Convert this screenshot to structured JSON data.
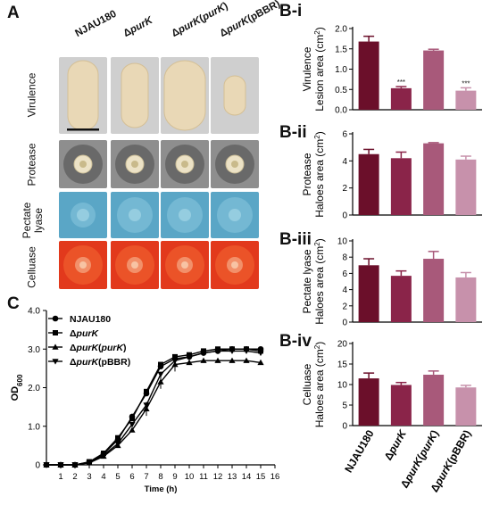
{
  "panel_a": {
    "label": "A",
    "strains": [
      "NJAU180",
      "ΔpurK",
      "ΔpurK(purK)",
      "ΔpurK(pBBR)"
    ],
    "strain_parts": [
      {
        "pre": "NJAU180",
        "it": "",
        "post": ""
      },
      {
        "pre": "Δ",
        "it": "purK",
        "post": ""
      },
      {
        "pre": "Δ",
        "it": "purK",
        "post": "(",
        "it2": "purK",
        "post2": ")"
      },
      {
        "pre": "Δ",
        "it": "purK",
        "post": "(pBBR)"
      }
    ],
    "rows": [
      "Virulence",
      "Protease",
      "Pectate lyase",
      "Celluase"
    ],
    "colors": {
      "virulence_bg": "#cfcfcf",
      "tuber": "#e9d8b6",
      "protease_bg": "#8e8e8e",
      "pectate_bg": "#5aa6c6",
      "cellulase_bg": "#e2391c"
    }
  },
  "panel_b_labels": [
    "B-i",
    "B-ii",
    "B-iii",
    "B-iv"
  ],
  "panel_c_label": "C",
  "chart_data": [
    {
      "type": "bar",
      "id": "B-i",
      "ylabel_line1": "Virulence",
      "ylabel_line2": "Lesion area (cm",
      "ylabel_sup": "2",
      "ylabel_end": ")",
      "ylim": [
        0,
        2.0
      ],
      "yticks": [
        0.0,
        0.5,
        1.0,
        1.5,
        2.0
      ],
      "categories": [
        "NJAU180",
        "ΔpurK",
        "ΔpurK(purK)",
        "ΔpurK(pBBR)"
      ],
      "values": [
        1.68,
        0.53,
        1.46,
        0.47
      ],
      "errors": [
        0.13,
        0.04,
        0.03,
        0.07
      ],
      "annotations": [
        "",
        "***",
        "",
        "***"
      ],
      "colors": [
        "#6b0f2a",
        "#8a2449",
        "#a8597a",
        "#c791ab"
      ]
    },
    {
      "type": "bar",
      "id": "B-ii",
      "ylabel_line1": "Protease",
      "ylabel_line2": "Haloes area (cm",
      "ylabel_sup": "2",
      "ylabel_end": ")",
      "ylim": [
        0,
        6
      ],
      "yticks": [
        0,
        2,
        4,
        6
      ],
      "categories": [
        "NJAU180",
        "ΔpurK",
        "ΔpurK(purK)",
        "ΔpurK(pBBR)"
      ],
      "values": [
        4.5,
        4.2,
        5.3,
        4.1
      ],
      "errors": [
        0.35,
        0.45,
        0.05,
        0.25
      ],
      "colors": [
        "#6b0f2a",
        "#8a2449",
        "#a8597a",
        "#c791ab"
      ]
    },
    {
      "type": "bar",
      "id": "B-iii",
      "ylabel_line1": "Pectate lyase",
      "ylabel_line2": "Haloes area (cm",
      "ylabel_sup": "2",
      "ylabel_end": ")",
      "ylim": [
        0,
        10
      ],
      "yticks": [
        0,
        2,
        4,
        6,
        8,
        10
      ],
      "categories": [
        "NJAU180",
        "ΔpurK",
        "ΔpurK(purK)",
        "ΔpurK(pBBR)"
      ],
      "values": [
        7.0,
        5.7,
        7.8,
        5.5
      ],
      "errors": [
        0.8,
        0.6,
        0.9,
        0.6
      ],
      "colors": [
        "#6b0f2a",
        "#8a2449",
        "#a8597a",
        "#c791ab"
      ]
    },
    {
      "type": "bar",
      "id": "B-iv",
      "ylabel_line1": "Celluase",
      "ylabel_line2": "Haloes area (cm",
      "ylabel_sup": "2",
      "ylabel_end": ")",
      "ylim": [
        0,
        20
      ],
      "yticks": [
        0,
        5,
        10,
        15,
        20
      ],
      "categories": [
        "NJAU180",
        "ΔpurK",
        "ΔpurK(purK)",
        "ΔpurK(pBBR)"
      ],
      "values": [
        11.5,
        9.9,
        12.4,
        9.3
      ],
      "errors": [
        1.3,
        0.6,
        0.9,
        0.5
      ],
      "colors": [
        "#6b0f2a",
        "#8a2449",
        "#a8597a",
        "#c791ab"
      ]
    },
    {
      "type": "line",
      "id": "C",
      "ylabel": "OD",
      "ylabel_sub": "600",
      "xlabel": "Time (h)",
      "xlim": [
        0,
        16
      ],
      "ylim": [
        0,
        4.0
      ],
      "xticks": [
        1,
        2,
        3,
        4,
        5,
        6,
        7,
        8,
        9,
        10,
        11,
        12,
        13,
        14,
        15,
        16
      ],
      "yticks": [
        0,
        1.0,
        2.0,
        3.0,
        4.0
      ],
      "ytick_labels": [
        "0",
        "1.0",
        "2.0",
        "3.0",
        "4.0"
      ],
      "x": [
        0,
        1,
        2,
        3,
        4,
        5,
        6,
        7,
        8,
        9,
        10,
        11,
        12,
        13,
        14,
        15
      ],
      "series": [
        {
          "name": "NJAU180",
          "marker": "circle",
          "values": [
            0,
            0,
            0,
            0.07,
            0.28,
            0.65,
            1.25,
            1.85,
            2.55,
            2.75,
            2.8,
            2.9,
            2.95,
            3.0,
            3.0,
            3.0
          ]
        },
        {
          "name": "ΔpurK",
          "marker": "square",
          "values": [
            0,
            0,
            0,
            0.08,
            0.3,
            0.7,
            1.2,
            1.9,
            2.6,
            2.8,
            2.85,
            2.95,
            3.0,
            3.0,
            3.0,
            2.95
          ]
        },
        {
          "name": "ΔpurK(purK)",
          "marker": "triangle-up",
          "values": [
            0,
            0,
            0,
            0.05,
            0.22,
            0.5,
            0.9,
            1.45,
            2.15,
            2.6,
            2.65,
            2.7,
            2.7,
            2.7,
            2.7,
            2.65
          ]
        },
        {
          "name": "ΔpurK(pBBR)",
          "marker": "triangle-down",
          "values": [
            0,
            0,
            0,
            0.06,
            0.25,
            0.55,
            1.05,
            1.55,
            2.35,
            2.7,
            2.8,
            2.9,
            2.95,
            2.95,
            2.95,
            2.9
          ]
        }
      ],
      "legend_parts": [
        {
          "pre": "NJAU180",
          "it": "",
          "post": ""
        },
        {
          "pre": "Δ",
          "it": "purK",
          "post": ""
        },
        {
          "pre": "Δ",
          "it": "purK",
          "post": "(",
          "it2": "purK",
          "post2": ")"
        },
        {
          "pre": "Δ",
          "it": "purK",
          "post": "(pBBR)"
        }
      ],
      "legend": "top-left"
    }
  ]
}
